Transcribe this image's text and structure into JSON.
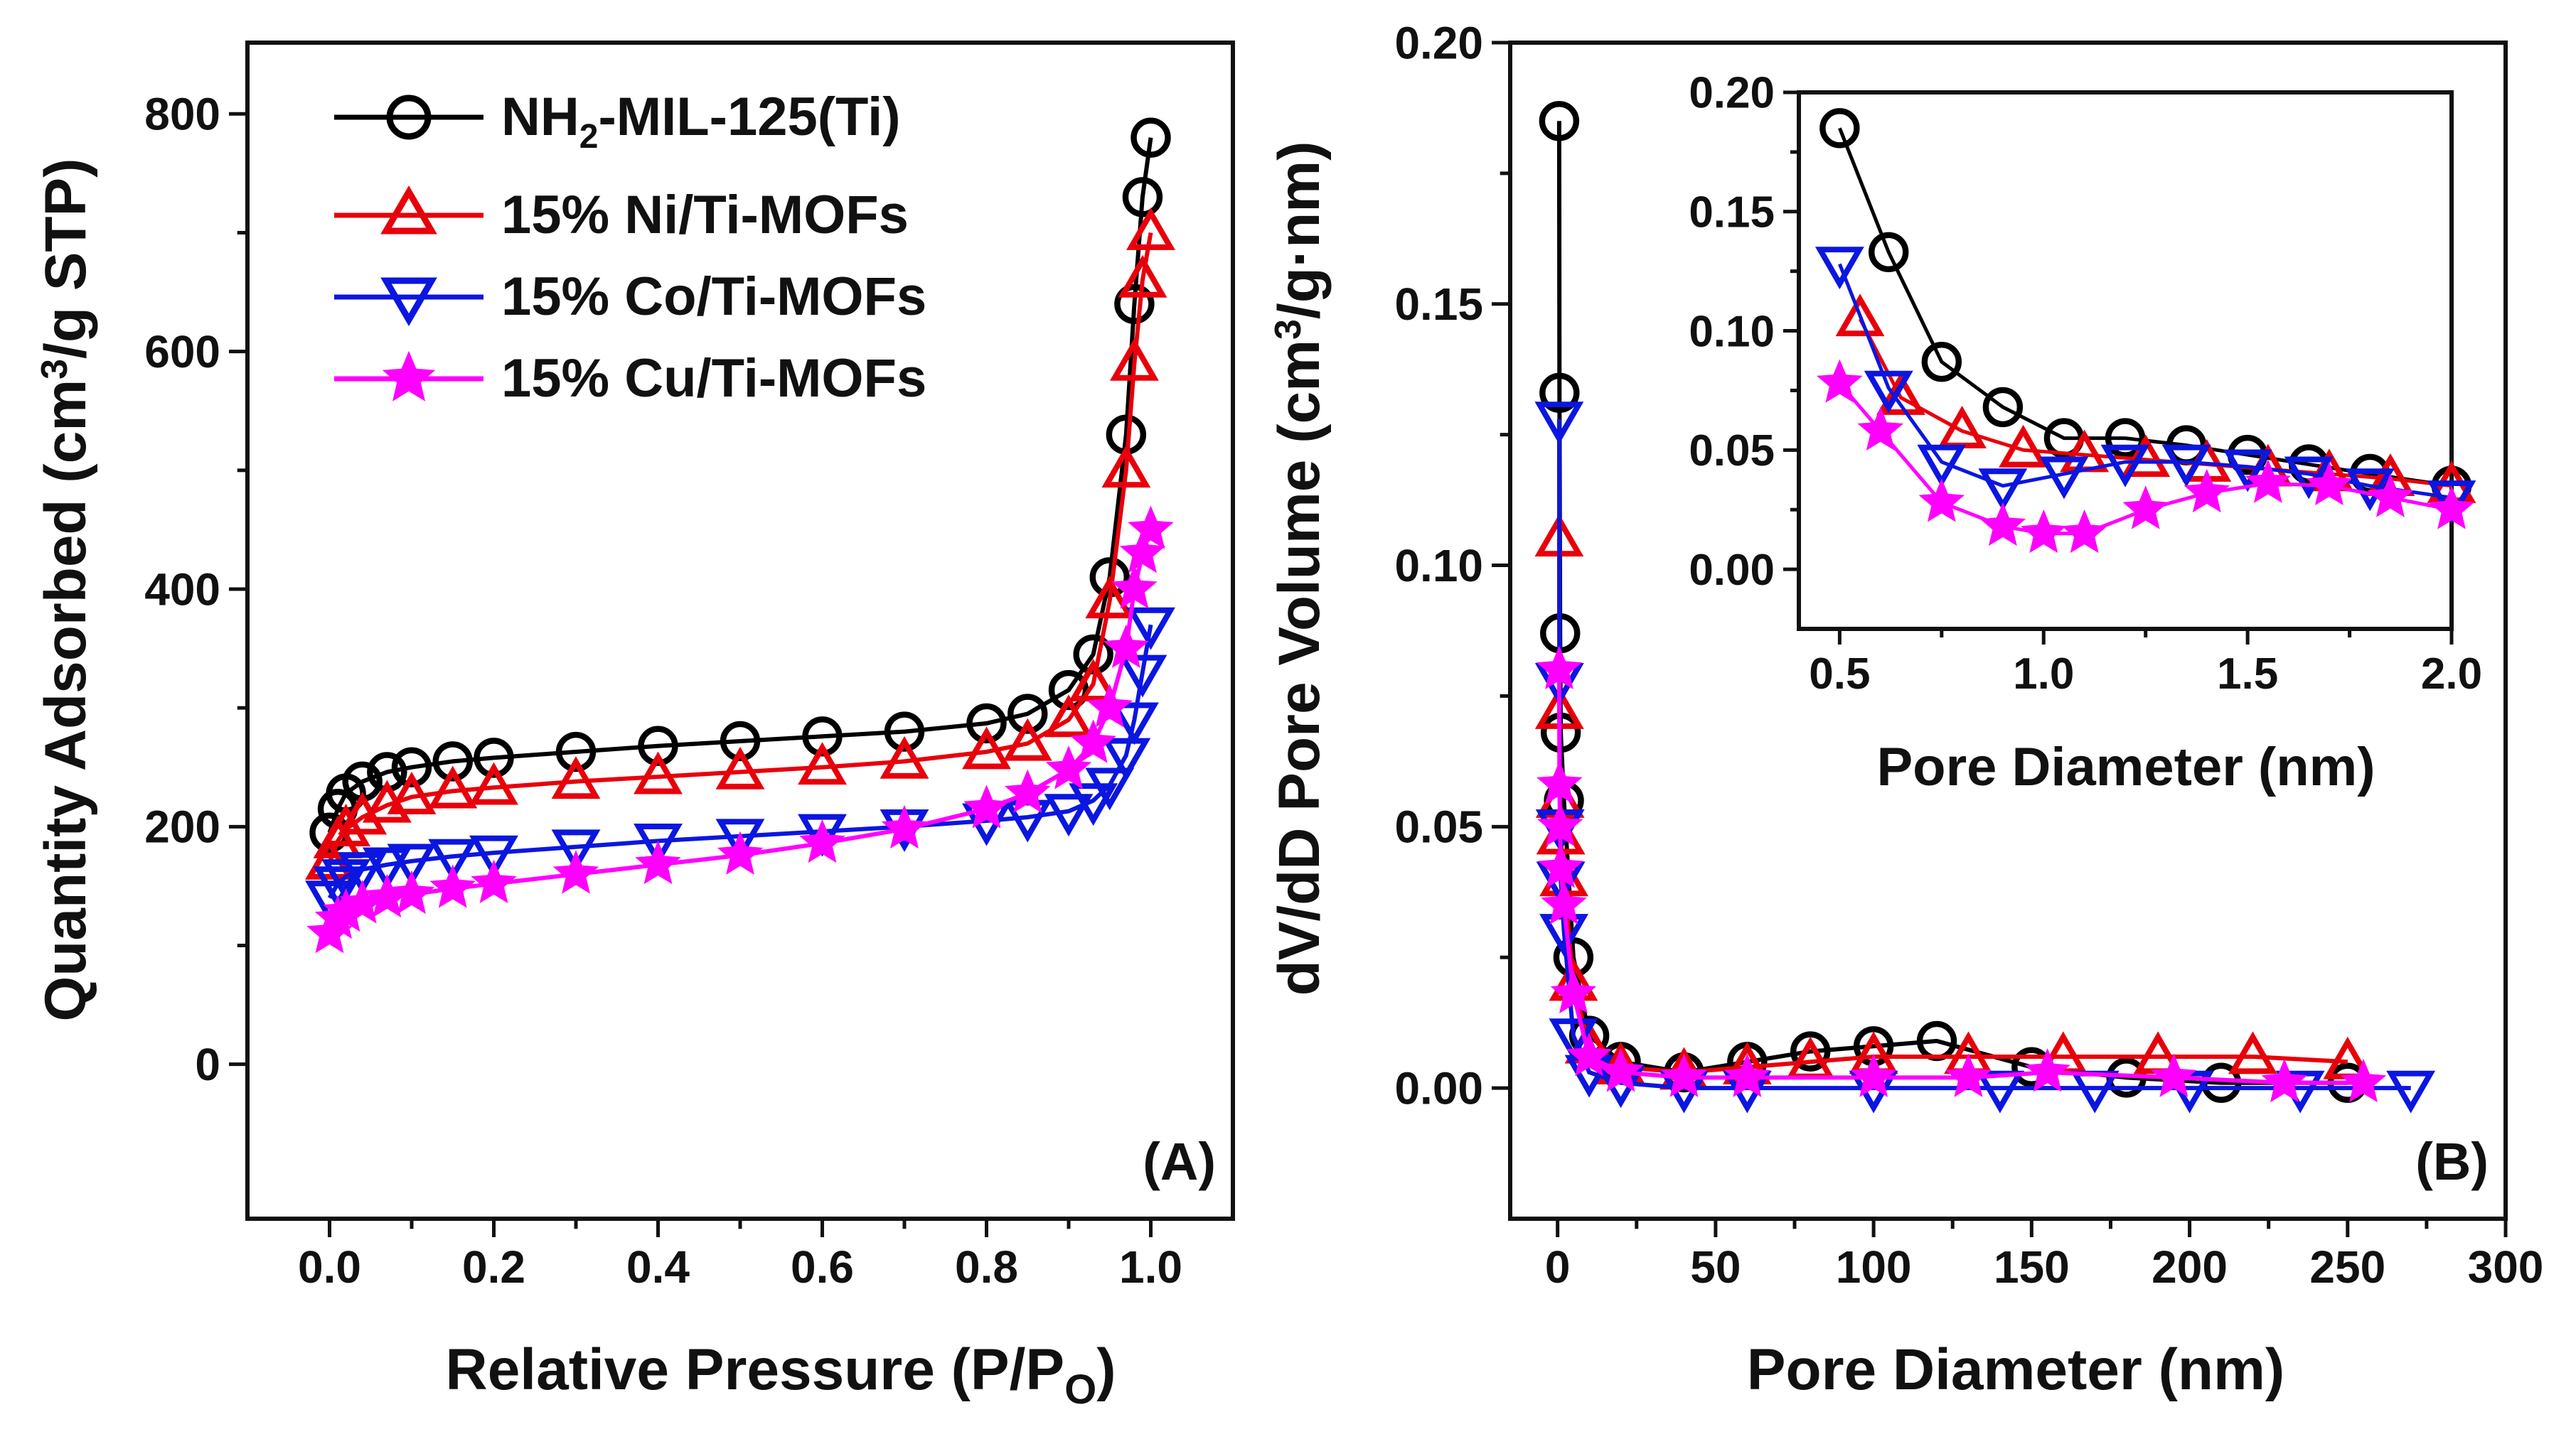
{
  "chart_data": [
    {
      "panel": "(A)",
      "type": "scatter",
      "xlabel": "Relative Pressure (P/P",
      "xlabel_sub": "O",
      "xlabel_close": ")",
      "ylabel": "Quantity Adsorbed (cm",
      "ylabel_sup": "3",
      "ylabel_rest": "/g STP)",
      "xlim": [
        -0.1,
        1.1
      ],
      "ylim": [
        -130,
        860
      ],
      "x_ticks": [
        0.0,
        0.2,
        0.4,
        0.6,
        0.8,
        1.0
      ],
      "x_tick_labels": [
        "0.0",
        "0.2",
        "0.4",
        "0.6",
        "0.8",
        "1.0"
      ],
      "y_ticks": [
        0,
        200,
        400,
        600,
        800
      ],
      "y_tick_labels": [
        "0",
        "200",
        "400",
        "600",
        "800"
      ],
      "legend": [
        {
          "label": "NH",
          "sub": "2",
          "rest": "-MIL-125(Ti)"
        },
        {
          "label": "15% Ni/Ti-MOFs",
          "sub": "",
          "rest": ""
        },
        {
          "label": "15% Co/Ti-MOFs",
          "sub": "",
          "rest": ""
        },
        {
          "label": "15% Cu/Ti-MOFs",
          "sub": "",
          "rest": ""
        }
      ],
      "series": [
        {
          "name": "NH2-MIL-125(Ti)",
          "color": "#000000",
          "marker": "circle",
          "x": [
            0.0,
            0.01,
            0.02,
            0.04,
            0.07,
            0.1,
            0.15,
            0.2,
            0.3,
            0.4,
            0.5,
            0.6,
            0.7,
            0.8,
            0.85,
            0.9,
            0.93,
            0.95,
            0.97,
            0.98,
            0.99,
            1.0
          ],
          "y": [
            195,
            215,
            228,
            238,
            246,
            250,
            255,
            258,
            263,
            268,
            272,
            276,
            280,
            287,
            295,
            315,
            345,
            410,
            530,
            640,
            730,
            780
          ]
        },
        {
          "name": "15% Ni/Ti-MOFs",
          "color": "#e8000b",
          "marker": "triangle-up",
          "x": [
            0.0,
            0.01,
            0.02,
            0.04,
            0.07,
            0.1,
            0.15,
            0.2,
            0.3,
            0.4,
            0.5,
            0.6,
            0.7,
            0.8,
            0.85,
            0.9,
            0.93,
            0.95,
            0.97,
            0.98,
            0.99,
            1.0
          ],
          "y": [
            170,
            188,
            198,
            208,
            218,
            225,
            230,
            233,
            238,
            242,
            246,
            250,
            255,
            263,
            270,
            290,
            320,
            390,
            500,
            590,
            660,
            700
          ]
        },
        {
          "name": "15% Co/Ti-MOFs",
          "color": "#0b16e0",
          "marker": "triangle-down",
          "x": [
            0.0,
            0.01,
            0.02,
            0.04,
            0.07,
            0.1,
            0.15,
            0.2,
            0.3,
            0.4,
            0.5,
            0.6,
            0.7,
            0.8,
            0.85,
            0.9,
            0.93,
            0.95,
            0.97,
            0.98,
            0.99,
            1.0
          ],
          "y": [
            140,
            152,
            158,
            164,
            168,
            171,
            175,
            178,
            183,
            188,
            192,
            196,
            200,
            205,
            208,
            213,
            222,
            235,
            260,
            290,
            330,
            370
          ]
        },
        {
          "name": "15% Cu/Ti-MOFs",
          "color": "#ff00ff",
          "marker": "star",
          "x": [
            0.0,
            0.01,
            0.02,
            0.04,
            0.07,
            0.1,
            0.15,
            0.2,
            0.3,
            0.4,
            0.5,
            0.6,
            0.7,
            0.8,
            0.85,
            0.9,
            0.93,
            0.95,
            0.97,
            0.98,
            0.99,
            1.0
          ],
          "y": [
            110,
            122,
            128,
            135,
            140,
            143,
            148,
            152,
            160,
            168,
            176,
            186,
            198,
            215,
            228,
            248,
            270,
            300,
            350,
            400,
            430,
            450
          ]
        }
      ]
    },
    {
      "panel": "(B)",
      "type": "scatter",
      "xlabel": "Pore Diameter (nm)",
      "ylabel": "dV/dD Pore Volume (cm",
      "ylabel_sup": "3",
      "ylabel_rest": "/g·nm)",
      "xlim": [
        -15,
        300
      ],
      "ylim": [
        -0.025,
        0.2
      ],
      "x_ticks": [
        0,
        50,
        100,
        150,
        200,
        250,
        300
      ],
      "x_tick_labels": [
        "0",
        "50",
        "100",
        "150",
        "200",
        "250",
        "300"
      ],
      "y_ticks": [
        0.0,
        0.05,
        0.1,
        0.15,
        0.2
      ],
      "y_tick_labels": [
        "0.00",
        "0.05",
        "0.10",
        "0.15",
        "0.20"
      ],
      "series": [
        {
          "name": "NH2-MIL-125(Ti)",
          "color": "#000000",
          "marker": "circle",
          "x": [
            0.5,
            0.6,
            0.8,
            1,
            2,
            5,
            10,
            20,
            40,
            60,
            80,
            100,
            120,
            150,
            180,
            210,
            250
          ],
          "y": [
            0.185,
            0.133,
            0.087,
            0.068,
            0.055,
            0.025,
            0.01,
            0.005,
            0.003,
            0.005,
            0.007,
            0.008,
            0.009,
            0.004,
            0.002,
            0.001,
            0.001
          ]
        },
        {
          "name": "15% Ni/Ti-MOFs",
          "color": "#e8000b",
          "marker": "triangle-up",
          "x": [
            0.5,
            0.6,
            0.8,
            1,
            2,
            5,
            10,
            20,
            40,
            60,
            80,
            100,
            130,
            160,
            190,
            220,
            250
          ],
          "y": [
            0.105,
            0.072,
            0.055,
            0.048,
            0.04,
            0.02,
            0.008,
            0.004,
            0.003,
            0.004,
            0.005,
            0.006,
            0.006,
            0.006,
            0.006,
            0.006,
            0.005
          ]
        },
        {
          "name": "15% Co/Ti-MOFs",
          "color": "#0b16e0",
          "marker": "triangle-down",
          "x": [
            0.5,
            0.6,
            0.8,
            1,
            2,
            5,
            10,
            20,
            40,
            60,
            100,
            140,
            170,
            200,
            235,
            270
          ],
          "y": [
            0.128,
            0.078,
            0.05,
            0.04,
            0.03,
            0.01,
            0.003,
            0.001,
            0.0,
            0.0,
            0.0,
            0.0,
            0.0,
            0.0,
            0.0,
            0.0
          ]
        },
        {
          "name": "15% Cu/Ti-MOFs",
          "color": "#ff00ff",
          "marker": "star",
          "x": [
            0.5,
            0.6,
            0.8,
            1,
            2,
            5,
            10,
            20,
            40,
            60,
            100,
            130,
            155,
            195,
            230,
            255
          ],
          "y": [
            0.08,
            0.058,
            0.05,
            0.042,
            0.035,
            0.018,
            0.006,
            0.003,
            0.002,
            0.002,
            0.002,
            0.002,
            0.003,
            0.002,
            0.001,
            0.001
          ]
        }
      ]
    },
    {
      "panel": "inset",
      "type": "scatter",
      "xlabel": "Pore Diameter (nm)",
      "xlim": [
        0.4,
        2.0
      ],
      "ylim": [
        -0.025,
        0.2
      ],
      "x_ticks": [
        0.5,
        1.0,
        1.5,
        2.0
      ],
      "x_tick_labels": [
        "0.5",
        "1.0",
        "1.5",
        "2.0"
      ],
      "y_ticks": [
        0.0,
        0.05,
        0.1,
        0.15,
        0.2
      ],
      "y_tick_labels": [
        "0.00",
        "0.05",
        "0.10",
        "0.15",
        "0.20"
      ],
      "series": [
        {
          "name": "NH2-MIL-125(Ti)",
          "color": "#000000",
          "marker": "circle",
          "x": [
            0.5,
            0.62,
            0.75,
            0.9,
            1.05,
            1.2,
            1.35,
            1.5,
            1.65,
            1.8,
            2.0
          ],
          "y": [
            0.185,
            0.133,
            0.087,
            0.068,
            0.055,
            0.055,
            0.052,
            0.048,
            0.044,
            0.04,
            0.035
          ]
        },
        {
          "name": "15% Ni/Ti-MOFs",
          "color": "#e8000b",
          "marker": "triangle-up",
          "x": [
            0.55,
            0.65,
            0.8,
            0.95,
            1.1,
            1.25,
            1.4,
            1.55,
            1.7,
            1.85,
            2.0
          ],
          "y": [
            0.105,
            0.072,
            0.058,
            0.05,
            0.048,
            0.046,
            0.044,
            0.042,
            0.04,
            0.038,
            0.035
          ]
        },
        {
          "name": "15% Co/Ti-MOFs",
          "color": "#0b16e0",
          "marker": "triangle-down",
          "x": [
            0.5,
            0.62,
            0.75,
            0.9,
            1.05,
            1.2,
            1.35,
            1.5,
            1.65,
            1.8,
            2.0
          ],
          "y": [
            0.128,
            0.076,
            0.045,
            0.035,
            0.04,
            0.045,
            0.045,
            0.043,
            0.04,
            0.035,
            0.03
          ]
        },
        {
          "name": "15% Cu/Ti-MOFs",
          "color": "#ff00ff",
          "marker": "star",
          "x": [
            0.5,
            0.6,
            0.75,
            0.9,
            1.0,
            1.1,
            1.25,
            1.4,
            1.55,
            1.7,
            1.85,
            2.0
          ],
          "y": [
            0.078,
            0.058,
            0.028,
            0.018,
            0.015,
            0.015,
            0.025,
            0.032,
            0.036,
            0.035,
            0.03,
            0.025
          ]
        }
      ]
    }
  ]
}
